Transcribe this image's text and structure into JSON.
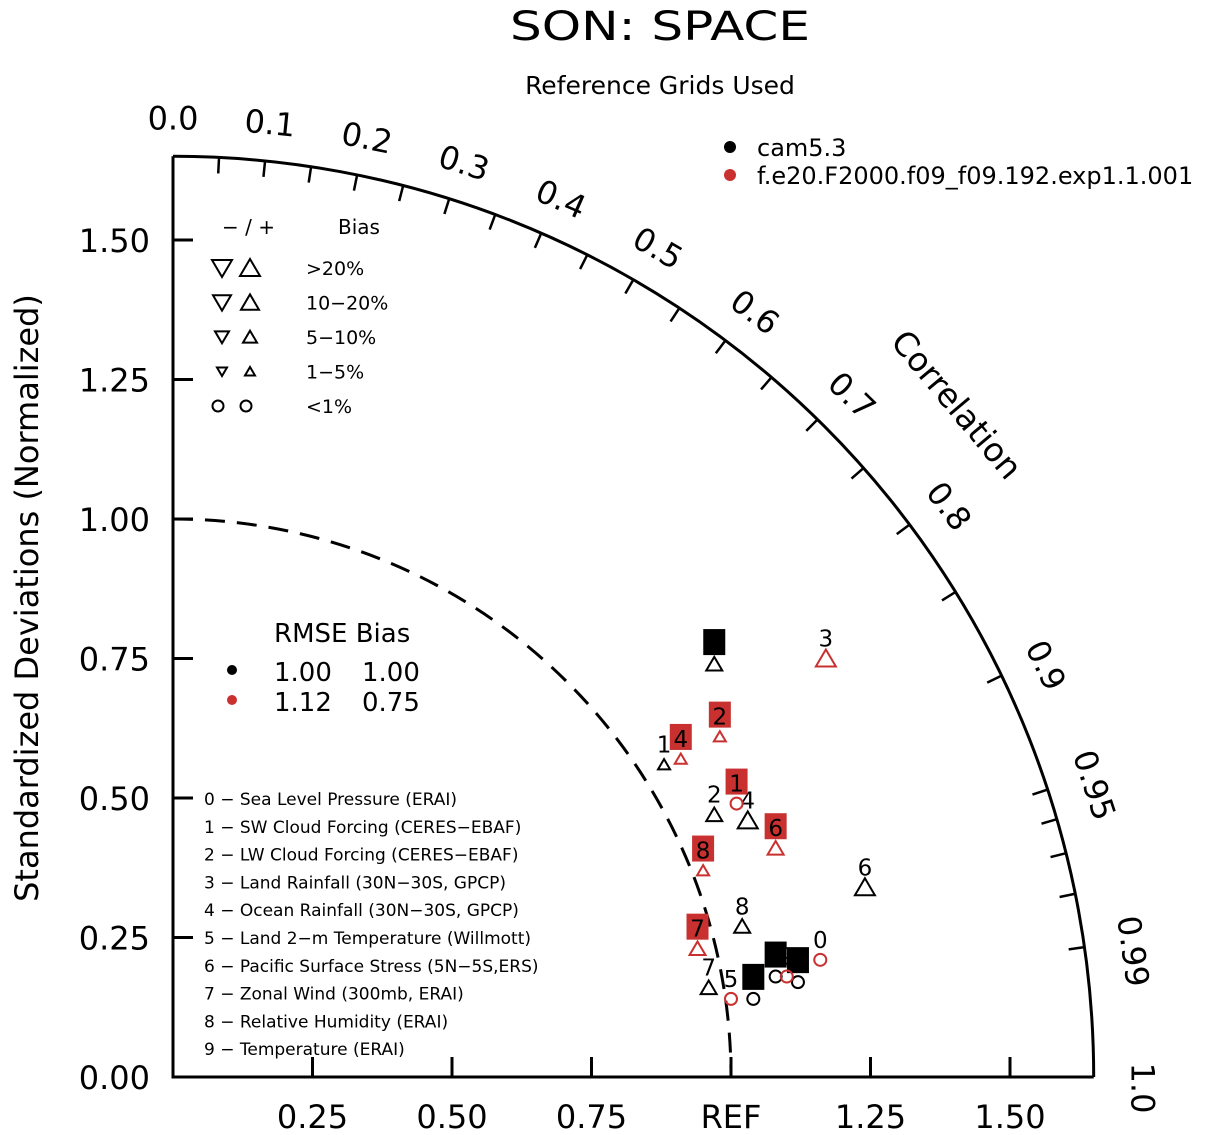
{
  "chart_data": {
    "type": "scatter",
    "subtype": "taylor-diagram",
    "title": "SON: SPACE",
    "subtitle": "Reference Grids Used",
    "ylabel": "Standardized Deviations (Normalized)",
    "xlabel_ref": "REF",
    "arc_label": "Correlation",
    "std_range": [
      0,
      1.65
    ],
    "std_ticks": [
      "0.00",
      "0.25",
      "0.50",
      "0.75",
      "1.00",
      "1.25",
      "1.50"
    ],
    "x_ticks": [
      "0.25",
      "0.50",
      "0.75",
      "REF",
      "1.25",
      "1.50"
    ],
    "corr_labels": [
      "0.0",
      "0.1",
      "0.2",
      "0.3",
      "0.4",
      "0.5",
      "0.6",
      "0.7",
      "0.8",
      "0.9",
      "0.95",
      "0.99",
      "1.0"
    ],
    "colors": {
      "case1": "#000000",
      "case2": "#c8312f"
    },
    "cases": [
      "cam5.3",
      "f.e20.F2000.f09_f09.192.exp1.1.001"
    ],
    "bias_legend": {
      "header_sign": "− / +",
      "header_label": "Bias",
      "rows": [
        ">20%",
        "10−20%",
        "5−10%",
        "1−5%",
        "<1%"
      ]
    },
    "rmse_legend": {
      "header": "RMSE Bias",
      "rows": [
        {
          "rmse": "1.00",
          "bias": "1.00"
        },
        {
          "rmse": "1.12",
          "bias": "0.75"
        }
      ]
    },
    "variables": [
      "0 − Sea Level Pressure (ERAI)",
      "1 − SW Cloud Forcing (CERES−EBAF)",
      "2 − LW Cloud Forcing (CERES−EBAF)",
      "3 − Land Rainfall (30N−30S, GPCP)",
      "4 − Ocean Rainfall (30N−30S, GPCP)",
      "5 − Land 2−m Temperature (Willmott)",
      "6 − Pacific Surface Stress (5N−5S,ERS)",
      "7 − Zonal Wind (300mb, ERAI)",
      "8 − Relative Humidity (ERAI)",
      "9 − Temperature (ERAI)"
    ],
    "series": [
      {
        "name": "cam5.3",
        "points": [
          {
            "id": "0",
            "x": 1.08,
            "y": 0.18,
            "marker": "circle",
            "boxed": true
          },
          {
            "id": "1",
            "x": 0.88,
            "y": 0.56,
            "marker": "tri-up-small",
            "boxed": false
          },
          {
            "id": "2",
            "x": 0.97,
            "y": 0.47,
            "marker": "tri-up",
            "boxed": false
          },
          {
            "id": "3",
            "x": 0.97,
            "y": 0.74,
            "marker": "tri-up",
            "boxed": true
          },
          {
            "id": "4",
            "x": 1.03,
            "y": 0.46,
            "marker": "tri-up-large",
            "boxed": false
          },
          {
            "id": "5",
            "x": 1.04,
            "y": 0.14,
            "marker": "circle",
            "boxed": true
          },
          {
            "id": "6",
            "x": 1.24,
            "y": 0.34,
            "marker": "tri-up-large",
            "boxed": false
          },
          {
            "id": "7",
            "x": 0.96,
            "y": 0.16,
            "marker": "tri-up",
            "boxed": false
          },
          {
            "id": "8",
            "x": 1.02,
            "y": 0.27,
            "marker": "tri-up",
            "boxed": false
          },
          {
            "id": "9",
            "x": 1.12,
            "y": 0.17,
            "marker": "circle",
            "boxed": true
          }
        ]
      },
      {
        "name": "f.e20.F2000.f09_f09.192.exp1.1.001",
        "points": [
          {
            "id": "0",
            "x": 1.16,
            "y": 0.21,
            "marker": "circle",
            "boxed": false
          },
          {
            "id": "1",
            "x": 1.01,
            "y": 0.49,
            "marker": "circle",
            "boxed": true
          },
          {
            "id": "2",
            "x": 0.98,
            "y": 0.61,
            "marker": "tri-up-small",
            "boxed": true
          },
          {
            "id": "3",
            "x": 1.17,
            "y": 0.75,
            "marker": "tri-up-large",
            "boxed": false
          },
          {
            "id": "4",
            "x": 0.91,
            "y": 0.57,
            "marker": "tri-up-small",
            "boxed": true
          },
          {
            "id": "5",
            "x": 1.0,
            "y": 0.14,
            "marker": "circle",
            "boxed": false
          },
          {
            "id": "6",
            "x": 1.08,
            "y": 0.41,
            "marker": "tri-up",
            "boxed": true
          },
          {
            "id": "7",
            "x": 0.94,
            "y": 0.23,
            "marker": "tri-up",
            "boxed": true
          },
          {
            "id": "8",
            "x": 0.95,
            "y": 0.37,
            "marker": "tri-up-small",
            "boxed": true
          },
          {
            "id": "9",
            "x": 1.1,
            "y": 0.18,
            "marker": "circle",
            "boxed": false
          }
        ]
      }
    ]
  }
}
